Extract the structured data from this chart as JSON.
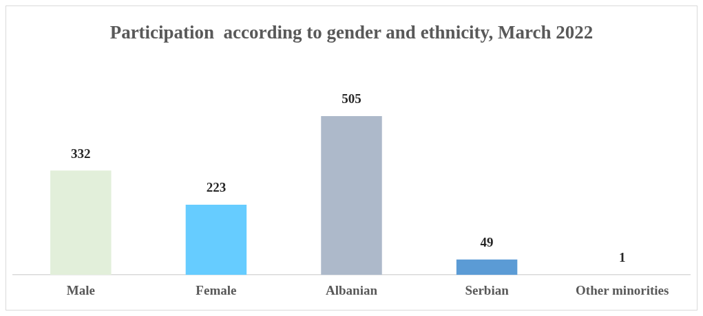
{
  "chart_data": {
    "type": "bar",
    "title": "Participation  according to gender and ethnicity, March 2022",
    "categories": [
      "Male",
      "Female",
      "Albanian",
      "Serbian",
      "Other minorities"
    ],
    "values": [
      332,
      223,
      505,
      49,
      1
    ],
    "colors": [
      "#e2efda",
      "#66ccff",
      "#adb9ca",
      "#5b9bd5",
      "#d9d9d9"
    ],
    "data_labels": true,
    "grid": false,
    "legend": false
  }
}
